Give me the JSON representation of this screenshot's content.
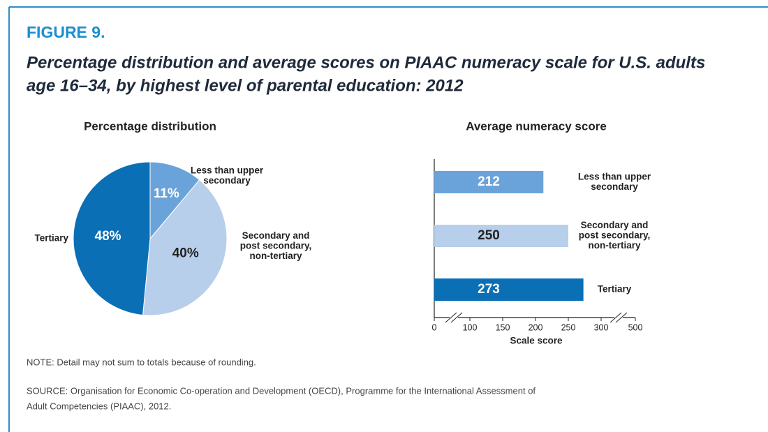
{
  "figure": "FIGURE 9.",
  "title": [
    "Percentage distribution and average scores on PIAAC numeracy scale for U.S. adults",
    "age 16–34, by highest level of parental education: 2012"
  ],
  "note": "NOTE: Detail may not sum to totals because of rounding.",
  "source": [
    "SOURCE: Organisation for Economic Co-operation and Development (OECD), Programme for the International Assessment of",
    "Adult Competencies (PIAAC), 2012."
  ],
  "chart_data": [
    {
      "type": "pie",
      "title": "Percentage distribution",
      "categories": [
        [
          "Less than upper",
          "secondary"
        ],
        [
          "Secondary and",
          "post secondary,",
          "non-tertiary"
        ],
        [
          "Tertiary"
        ]
      ],
      "values": [
        11,
        40,
        48
      ],
      "value_labels": [
        "11%",
        "40%",
        "48%"
      ],
      "colors": [
        "#6aa3d9",
        "#b8cfeb",
        "#0a6fb5"
      ]
    },
    {
      "type": "bar",
      "orientation": "horizontal",
      "title": "Average numeracy score",
      "categories": [
        [
          "Less than upper",
          "secondary"
        ],
        [
          "Secondary and",
          "post secondary,",
          "non-tertiary"
        ],
        [
          "Tertiary"
        ]
      ],
      "values": [
        212,
        250,
        273
      ],
      "colors": [
        "#6aa3d9",
        "#b8cfeb",
        "#0a6fb5"
      ],
      "xlabel": "Scale score",
      "xlim": [
        100,
        300
      ],
      "xticks": [
        0,
        100,
        150,
        200,
        250,
        300,
        500
      ],
      "axis_breaks": true
    }
  ]
}
